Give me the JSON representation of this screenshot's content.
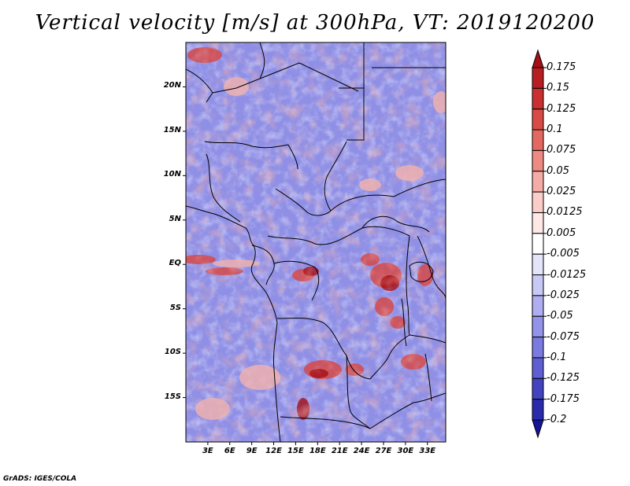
{
  "title": "Vertical velocity [m/s] at 300hPa, VT: 2019120200",
  "footer": "GrADS: IGES/COLA",
  "lat_ticks": [
    {
      "label": "20N",
      "value": 20
    },
    {
      "label": "15N",
      "value": 15
    },
    {
      "label": "10N",
      "value": 10
    },
    {
      "label": "5N",
      "value": 5
    },
    {
      "label": "EQ",
      "value": 0
    },
    {
      "label": "5S",
      "value": -5
    },
    {
      "label": "10S",
      "value": -10
    },
    {
      "label": "15S",
      "value": -15
    }
  ],
  "lon_ticks": [
    {
      "label": "3E",
      "value": 3
    },
    {
      "label": "6E",
      "value": 6
    },
    {
      "label": "9E",
      "value": 9
    },
    {
      "label": "12E",
      "value": 12
    },
    {
      "label": "15E",
      "value": 15
    },
    {
      "label": "18E",
      "value": 18
    },
    {
      "label": "21E",
      "value": 21
    },
    {
      "label": "24E",
      "value": 24
    },
    {
      "label": "27E",
      "value": 27
    },
    {
      "label": "30E",
      "value": 30
    },
    {
      "label": "33E",
      "value": 33
    }
  ],
  "colorbar": {
    "labels": [
      "0.175",
      "0.15",
      "0.125",
      "0.1",
      "0.075",
      "0.05",
      "0.025",
      "0.0125",
      "0.005",
      "-0.005",
      "-0.0125",
      "-0.025",
      "-0.05",
      "-0.075",
      "-0.1",
      "-0.125",
      "-0.175",
      "-0.2"
    ],
    "colors": [
      "#a50f15",
      "#b81d22",
      "#c9302f",
      "#d84a45",
      "#e56860",
      "#ef8a82",
      "#f6aca6",
      "#fbcdc9",
      "#fde8e6",
      "#ffffff",
      "#e4e4fb",
      "#c9c9f6",
      "#aeaef0",
      "#9393e9",
      "#7a7ae0",
      "#5f5fd4",
      "#4343c2",
      "#2a2aac",
      "#15159a"
    ]
  },
  "colors": {
    "base": "#8f8fe6",
    "light_blue": "#c3c3f4",
    "pink": "#f3b2ad",
    "red": "#d8453f",
    "dark_red": "#a50f15",
    "white": "#ffffff",
    "border": "#000000"
  },
  "map": {
    "lon_range": [
      0,
      35.5
    ],
    "lat_range": [
      -20,
      25
    ]
  }
}
